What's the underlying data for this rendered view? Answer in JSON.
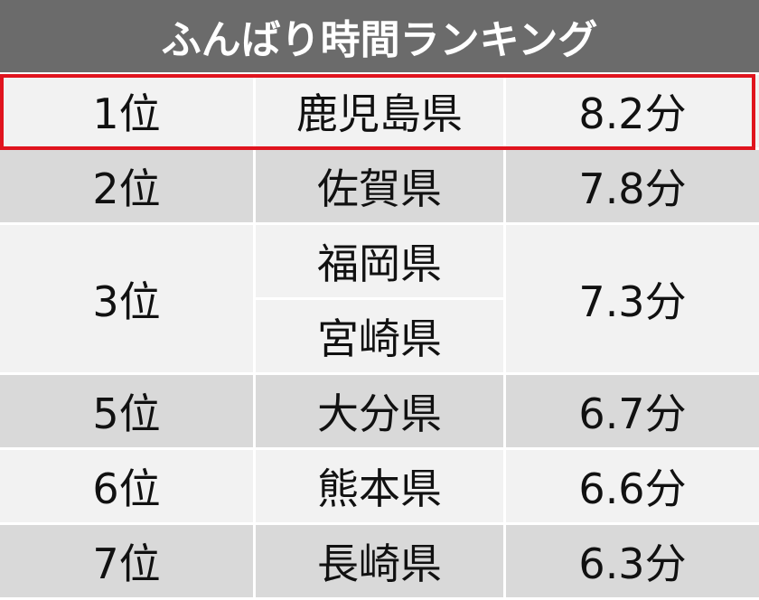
{
  "header": {
    "title": "ふんばり時間ランキング"
  },
  "table": {
    "rows": [
      {
        "rank": "1位",
        "prefectures": [
          "鹿児島県"
        ],
        "time": "8.2分"
      },
      {
        "rank": "2位",
        "prefectures": [
          "佐賀県"
        ],
        "time": "7.8分"
      },
      {
        "rank": "3位",
        "prefectures": [
          "福岡県",
          "宮崎県"
        ],
        "time": "7.3分"
      },
      {
        "rank": "5位",
        "prefectures": [
          "大分県"
        ],
        "time": "6.7分"
      },
      {
        "rank": "6位",
        "prefectures": [
          "熊本県"
        ],
        "time": "6.6分"
      },
      {
        "rank": "7位",
        "prefectures": [
          "長崎県"
        ],
        "time": "6.3分"
      }
    ]
  }
}
